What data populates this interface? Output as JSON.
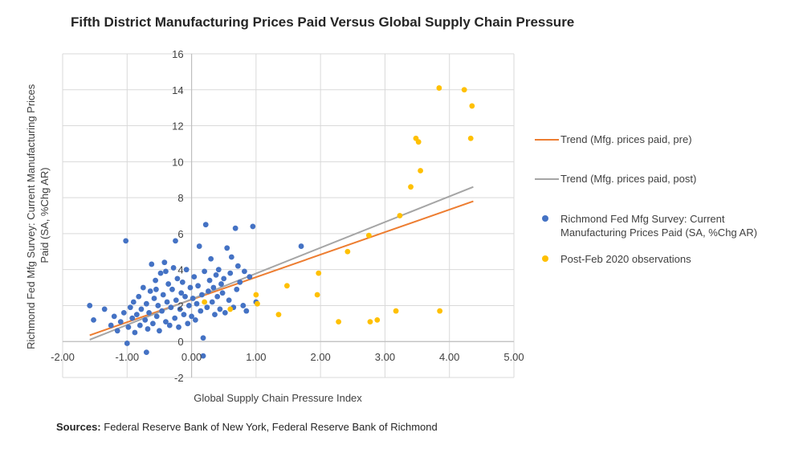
{
  "colors": {
    "pre_points": "#4472C4",
    "post_points": "#FFC000",
    "trend_pre": "#ED7D31",
    "trend_post": "#A5A5A5",
    "grid": "#D9D9D9",
    "axis": "#BFBFBF"
  },
  "sources": {
    "label": "Sources:",
    "text": " Federal Reserve Bank of New York, Federal Reserve Bank of Richmond"
  },
  "chart_data": {
    "type": "scatter",
    "title": "Fifth District Manufacturing Prices Paid Versus Global Supply Chain Pressure",
    "xlabel": "Global Supply Chain Pressure Index",
    "ylabel_lines": [
      "Richmond Fed Mfg Survey: Current Manufacturing Prices",
      "Paid (SA, %Chg AR)"
    ],
    "xlim": [
      -2,
      5
    ],
    "ylim": [
      -2,
      16
    ],
    "x_ticks": [
      -2,
      -1,
      0,
      1,
      2,
      3,
      4,
      5
    ],
    "x_tick_labels": [
      "-2.00",
      "-1.00",
      "0.00",
      "1.00",
      "2.00",
      "3.00",
      "4.00",
      "5.00"
    ],
    "y_ticks": [
      -2,
      0,
      2,
      4,
      6,
      8,
      10,
      12,
      14,
      16
    ],
    "y_tick_labels": [
      "-2",
      "0",
      "2",
      "4",
      "6",
      "8",
      "10",
      "12",
      "14",
      "16"
    ],
    "grid": true,
    "legend_position": "right",
    "legend": [
      {
        "name": "Trend (Mfg. prices paid, pre)",
        "kind": "line",
        "color": "#ED7D31"
      },
      {
        "name": "Trend (Mfg. prices paid, post)",
        "kind": "line",
        "color": "#A5A5A5"
      },
      {
        "name": "Richmond Fed Mfg Survey: Current Manufacturing Prices Paid (SA, %Chg AR)",
        "kind": "marker",
        "color": "#4472C4"
      },
      {
        "name": "Post-Feb 2020 observations",
        "kind": "marker",
        "color": "#FFC000"
      }
    ],
    "trend_lines": [
      {
        "name": "Trend (Mfg. prices paid, pre)",
        "x": [
          -1.58,
          4.37
        ],
        "y": [
          0.35,
          7.8
        ]
      },
      {
        "name": "Trend (Mfg. prices paid, post)",
        "x": [
          -1.58,
          4.37
        ],
        "y": [
          0.1,
          8.6
        ]
      }
    ],
    "series": [
      {
        "name": "Richmond Fed Mfg Survey: Current Manufacturing Prices Paid (SA, %Chg AR)",
        "points": [
          [
            -1.58,
            2.0
          ],
          [
            -1.52,
            1.2
          ],
          [
            -1.35,
            1.8
          ],
          [
            -1.25,
            0.9
          ],
          [
            -1.2,
            1.4
          ],
          [
            -1.15,
            0.6
          ],
          [
            -1.1,
            1.1
          ],
          [
            -1.05,
            1.6
          ],
          [
            -1.02,
            5.6
          ],
          [
            -0.98,
            0.8
          ],
          [
            -0.95,
            1.9
          ],
          [
            -0.92,
            1.3
          ],
          [
            -0.9,
            2.2
          ],
          [
            -0.88,
            0.5
          ],
          [
            -0.85,
            1.5
          ],
          [
            -0.82,
            2.5
          ],
          [
            -0.8,
            0.9
          ],
          [
            -0.78,
            1.8
          ],
          [
            -0.75,
            3.0
          ],
          [
            -0.72,
            1.2
          ],
          [
            -0.7,
            2.1
          ],
          [
            -0.68,
            0.7
          ],
          [
            -0.66,
            1.6
          ],
          [
            -0.64,
            2.8
          ],
          [
            -0.62,
            4.3
          ],
          [
            -0.6,
            1.0
          ],
          [
            -0.58,
            2.4
          ],
          [
            -0.56,
            3.4
          ],
          [
            -0.54,
            1.4
          ],
          [
            -0.52,
            2.0
          ],
          [
            -0.5,
            0.6
          ],
          [
            -0.48,
            3.8
          ],
          [
            -0.46,
            1.7
          ],
          [
            -0.44,
            2.6
          ],
          [
            -0.42,
            4.4
          ],
          [
            -0.4,
            1.1
          ],
          [
            -0.38,
            2.2
          ],
          [
            -0.36,
            3.2
          ],
          [
            -0.34,
            0.9
          ],
          [
            -0.32,
            1.9
          ],
          [
            -0.3,
            2.9
          ],
          [
            -0.28,
            4.1
          ],
          [
            -0.26,
            1.3
          ],
          [
            -0.24,
            2.3
          ],
          [
            -0.22,
            3.5
          ],
          [
            -0.2,
            0.8
          ],
          [
            -0.18,
            1.8
          ],
          [
            -0.16,
            2.7
          ],
          [
            -0.14,
            3.3
          ],
          [
            -0.12,
            1.5
          ],
          [
            -0.1,
            2.5
          ],
          [
            -0.08,
            4.0
          ],
          [
            -0.06,
            1.0
          ],
          [
            -0.04,
            2.0
          ],
          [
            -0.02,
            3.0
          ],
          [
            0.0,
            1.4
          ],
          [
            0.02,
            2.4
          ],
          [
            0.04,
            3.6
          ],
          [
            0.06,
            1.2
          ],
          [
            0.08,
            2.1
          ],
          [
            0.1,
            3.1
          ],
          [
            0.12,
            5.3
          ],
          [
            0.14,
            1.7
          ],
          [
            0.16,
            2.6
          ],
          [
            0.18,
            0.2
          ],
          [
            0.2,
            3.9
          ],
          [
            0.22,
            6.5
          ],
          [
            0.24,
            1.9
          ],
          [
            0.26,
            2.8
          ],
          [
            0.28,
            3.4
          ],
          [
            0.3,
            4.6
          ],
          [
            0.32,
            2.2
          ],
          [
            0.34,
            3.0
          ],
          [
            0.36,
            1.5
          ],
          [
            0.38,
            3.7
          ],
          [
            0.4,
            2.5
          ],
          [
            0.42,
            4.0
          ],
          [
            0.44,
            1.8
          ],
          [
            0.46,
            3.2
          ],
          [
            0.48,
            2.7
          ],
          [
            0.5,
            3.5
          ],
          [
            0.52,
            1.6
          ],
          [
            0.55,
            5.2
          ],
          [
            0.58,
            2.3
          ],
          [
            0.6,
            3.8
          ],
          [
            0.62,
            4.7
          ],
          [
            0.65,
            1.9
          ],
          [
            0.68,
            6.3
          ],
          [
            0.7,
            2.9
          ],
          [
            0.72,
            4.2
          ],
          [
            0.75,
            3.3
          ],
          [
            0.8,
            2.0
          ],
          [
            0.82,
            3.9
          ],
          [
            0.85,
            1.7
          ],
          [
            0.9,
            3.6
          ],
          [
            0.95,
            6.4
          ],
          [
            1.0,
            2.2
          ],
          [
            1.7,
            5.3
          ],
          [
            0.18,
            -0.8
          ],
          [
            -0.7,
            -0.6
          ],
          [
            -1.0,
            -0.1
          ],
          [
            -0.25,
            5.6
          ],
          [
            -0.4,
            3.9
          ],
          [
            -0.55,
            2.9
          ]
        ]
      },
      {
        "name": "Post-Feb 2020 observations",
        "points": [
          [
            0.2,
            2.2
          ],
          [
            0.6,
            1.8
          ],
          [
            1.0,
            2.6
          ],
          [
            1.02,
            2.1
          ],
          [
            1.35,
            1.5
          ],
          [
            1.48,
            3.1
          ],
          [
            1.95,
            2.6
          ],
          [
            1.97,
            3.8
          ],
          [
            2.28,
            1.1
          ],
          [
            2.42,
            5.0
          ],
          [
            2.75,
            5.9
          ],
          [
            2.77,
            1.1
          ],
          [
            2.88,
            1.2
          ],
          [
            3.17,
            1.7
          ],
          [
            3.23,
            7.0
          ],
          [
            3.4,
            8.6
          ],
          [
            3.48,
            11.3
          ],
          [
            3.52,
            11.1
          ],
          [
            3.55,
            9.5
          ],
          [
            3.84,
            14.1
          ],
          [
            3.85,
            1.7
          ],
          [
            4.23,
            14.0
          ],
          [
            4.33,
            11.3
          ],
          [
            4.35,
            13.1
          ]
        ]
      }
    ]
  }
}
